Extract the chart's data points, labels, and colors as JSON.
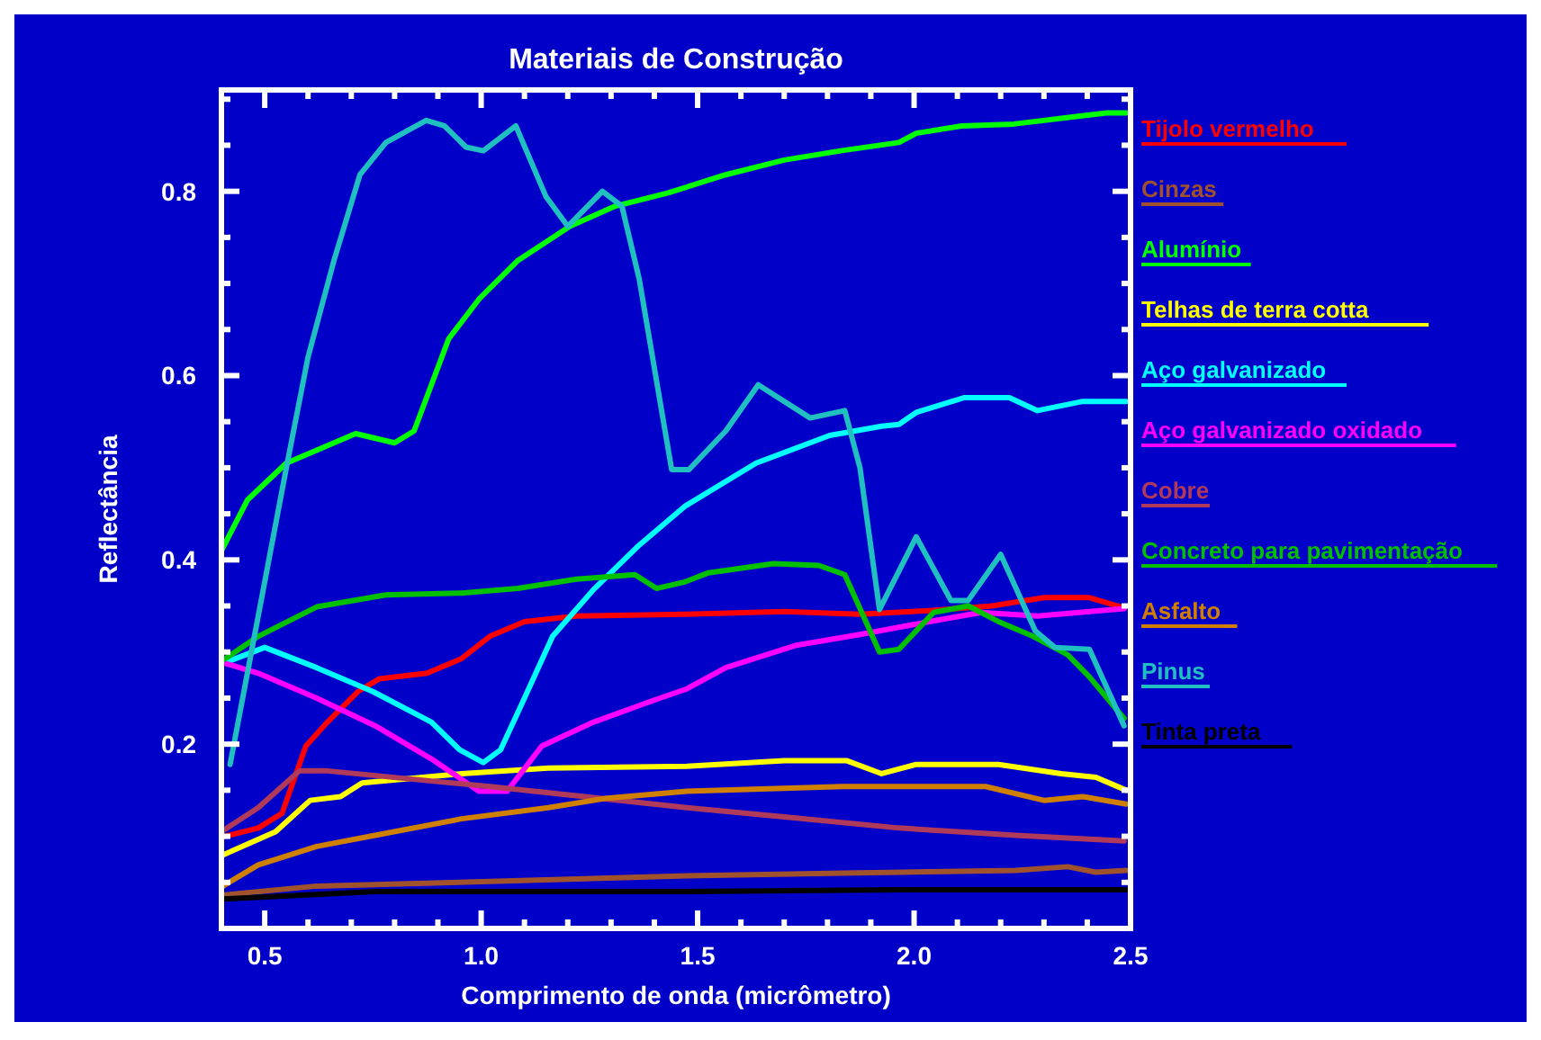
{
  "chart_data": {
    "type": "line",
    "title": "Materiais de Construção",
    "xlabel": "Comprimento de onda (micrômetro)",
    "ylabel": "Reflectância",
    "xlim": [
      0.4,
      2.5
    ],
    "ylim": [
      0,
      0.91
    ],
    "xticks": [
      {
        "value": 0.5,
        "label": "0.5"
      },
      {
        "value": 0.6,
        "label": null
      },
      {
        "value": 0.7,
        "label": null
      },
      {
        "value": 0.8,
        "label": null
      },
      {
        "value": 0.9,
        "label": null
      },
      {
        "value": 1,
        "label": "1.0"
      },
      {
        "value": 1.1,
        "label": null
      },
      {
        "value": 1.2,
        "label": null
      },
      {
        "value": 1.3,
        "label": null
      },
      {
        "value": 1.4,
        "label": null
      },
      {
        "value": 1.5,
        "label": "1.5"
      },
      {
        "value": 1.6,
        "label": null
      },
      {
        "value": 1.7,
        "label": null
      },
      {
        "value": 1.8,
        "label": null
      },
      {
        "value": 1.9,
        "label": null
      },
      {
        "value": 2,
        "label": "2.0"
      },
      {
        "value": 2.1,
        "label": null
      },
      {
        "value": 2.2,
        "label": null
      },
      {
        "value": 2.3,
        "label": null
      },
      {
        "value": 2.4,
        "label": null
      },
      {
        "value": 2.5,
        "label": "2.5"
      }
    ],
    "yticks": [
      {
        "value": 0.05,
        "label": null
      },
      {
        "value": 0.1,
        "label": null
      },
      {
        "value": 0.15,
        "label": null
      },
      {
        "value": 0.2,
        "label": "0.2"
      },
      {
        "value": 0.25,
        "label": null
      },
      {
        "value": 0.3,
        "label": null
      },
      {
        "value": 0.35,
        "label": null
      },
      {
        "value": 0.4,
        "label": "0.4"
      },
      {
        "value": 0.45,
        "label": null
      },
      {
        "value": 0.5,
        "label": null
      },
      {
        "value": 0.55,
        "label": null
      },
      {
        "value": 0.6,
        "label": "0.6"
      },
      {
        "value": 0.65,
        "label": null
      },
      {
        "value": 0.7,
        "label": null
      },
      {
        "value": 0.75,
        "label": null
      },
      {
        "value": 0.8,
        "label": "0.8"
      },
      {
        "value": 0.85,
        "label": null
      },
      {
        "value": 0.9,
        "label": null
      }
    ],
    "legend": "right",
    "series": [
      {
        "name": "Tijolo vermelho",
        "color": "#ff0000",
        "x": [
          0.4,
          0.485,
          0.54,
          0.595,
          0.645,
          0.715,
          0.765,
          0.875,
          0.955,
          1.02,
          1.1,
          1.22,
          1.47,
          1.7,
          1.875,
          2.035,
          2.18,
          2.3,
          2.405,
          2.485
        ],
        "values": [
          0.099,
          0.109,
          0.125,
          0.198,
          0.224,
          0.257,
          0.271,
          0.277,
          0.293,
          0.317,
          0.333,
          0.339,
          0.341,
          0.344,
          0.341,
          0.345,
          0.35,
          0.359,
          0.359,
          0.348
        ]
      },
      {
        "name": "Cinzas",
        "color": "#a0522d",
        "x": [
          0.4,
          0.62,
          1.02,
          1.475,
          1.835,
          2.235,
          2.355,
          2.42,
          2.49
        ],
        "values": [
          0.036,
          0.046,
          0.051,
          0.057,
          0.06,
          0.063,
          0.067,
          0.061,
          0.063
        ]
      },
      {
        "name": "Alumínio",
        "color": "#00ff00",
        "x": [
          0.4,
          0.46,
          0.55,
          0.71,
          0.8,
          0.845,
          0.925,
          0.995,
          1.085,
          1.205,
          1.31,
          1.43,
          1.565,
          1.7,
          1.83,
          1.965,
          2.005,
          2.11,
          2.23,
          2.37,
          2.445,
          2.49
        ],
        "values": [
          0.41,
          0.465,
          0.505,
          0.537,
          0.527,
          0.54,
          0.64,
          0.683,
          0.725,
          0.762,
          0.784,
          0.798,
          0.818,
          0.834,
          0.844,
          0.853,
          0.863,
          0.871,
          0.873,
          0.881,
          0.885,
          0.885
        ]
      },
      {
        "name": "Telhas de terra cotta",
        "color": "#ffff00",
        "x": [
          0.4,
          0.525,
          0.605,
          0.675,
          0.725,
          0.82,
          0.955,
          1.155,
          1.475,
          1.7,
          1.845,
          1.925,
          2.005,
          2.195,
          2.34,
          2.42,
          2.49
        ],
        "values": [
          0.079,
          0.105,
          0.139,
          0.143,
          0.158,
          0.162,
          0.168,
          0.174,
          0.176,
          0.182,
          0.182,
          0.168,
          0.178,
          0.178,
          0.168,
          0.164,
          0.15
        ]
      },
      {
        "name": "Aço galvanizado",
        "color": "#00ffff",
        "x": [
          0.4,
          0.5,
          0.62,
          0.75,
          0.885,
          0.95,
          1.005,
          1.045,
          1.1,
          1.165,
          1.26,
          1.365,
          1.47,
          1.635,
          1.805,
          1.925,
          1.965,
          2.005,
          2.115,
          2.22,
          2.285,
          2.39,
          2.49
        ],
        "values": [
          0.287,
          0.305,
          0.283,
          0.257,
          0.224,
          0.194,
          0.18,
          0.194,
          0.25,
          0.317,
          0.368,
          0.416,
          0.458,
          0.505,
          0.535,
          0.545,
          0.547,
          0.56,
          0.576,
          0.576,
          0.562,
          0.572,
          0.572
        ]
      },
      {
        "name": "Aço galvanizado oxidado",
        "color": "#ff00ff",
        "x": [
          0.4,
          0.485,
          0.62,
          0.755,
          0.885,
          0.995,
          1.06,
          1.14,
          1.26,
          1.395,
          1.475,
          1.565,
          1.725,
          1.875,
          2.035,
          2.155,
          2.285,
          2.485
        ],
        "values": [
          0.289,
          0.277,
          0.25,
          0.22,
          0.184,
          0.149,
          0.149,
          0.198,
          0.224,
          0.247,
          0.26,
          0.283,
          0.307,
          0.319,
          0.333,
          0.343,
          0.339,
          0.347
        ]
      },
      {
        "name": "Cobre",
        "color": "#b03a5a",
        "x": [
          0.4,
          0.485,
          0.58,
          0.645,
          0.885,
          1.02,
          1.22,
          1.475,
          1.7,
          1.965,
          2.235,
          2.485
        ],
        "values": [
          0.105,
          0.131,
          0.171,
          0.171,
          0.16,
          0.154,
          0.144,
          0.131,
          0.121,
          0.109,
          0.101,
          0.095
        ]
      },
      {
        "name": "Concreto para pavimentação",
        "color": "#00c000",
        "x": [
          0.4,
          0.485,
          0.62,
          0.78,
          0.955,
          1.085,
          1.22,
          1.355,
          1.405,
          1.47,
          1.525,
          1.675,
          1.78,
          1.84,
          1.92,
          1.965,
          2.045,
          2.125,
          2.195,
          2.275,
          2.355,
          2.405,
          2.485
        ],
        "values": [
          0.29,
          0.317,
          0.349,
          0.362,
          0.364,
          0.369,
          0.379,
          0.384,
          0.369,
          0.376,
          0.386,
          0.396,
          0.394,
          0.384,
          0.3,
          0.303,
          0.343,
          0.35,
          0.333,
          0.317,
          0.297,
          0.273,
          0.228
        ]
      },
      {
        "name": "Asfalto",
        "color": "#d08000",
        "x": [
          0.4,
          0.485,
          0.62,
          0.755,
          0.955,
          1.155,
          1.285,
          1.475,
          1.835,
          2.165,
          2.3,
          2.39,
          2.49
        ],
        "values": [
          0.045,
          0.069,
          0.089,
          0.101,
          0.119,
          0.131,
          0.141,
          0.149,
          0.154,
          0.154,
          0.139,
          0.143,
          0.135
        ]
      },
      {
        "name": "Pinus",
        "color": "#20c0c0",
        "x": [
          0.42,
          0.55,
          0.6,
          0.66,
          0.72,
          0.78,
          0.873,
          0.915,
          0.965,
          1.005,
          1.08,
          1.15,
          1.2,
          1.28,
          1.325,
          1.365,
          1.44,
          1.48,
          1.565,
          1.64,
          1.76,
          1.84,
          1.875,
          1.92,
          2.005,
          2.085,
          2.125,
          2.2,
          2.28,
          2.325,
          2.405,
          2.485
        ],
        "values": [
          0.178,
          0.5,
          0.62,
          0.725,
          0.818,
          0.853,
          0.877,
          0.871,
          0.848,
          0.844,
          0.871,
          0.794,
          0.762,
          0.8,
          0.784,
          0.705,
          0.498,
          0.498,
          0.54,
          0.59,
          0.554,
          0.562,
          0.5,
          0.346,
          0.425,
          0.356,
          0.356,
          0.406,
          0.323,
          0.305,
          0.303,
          0.22
        ]
      },
      {
        "name": "Tinta preta",
        "color": "#000000",
        "x": [
          0.405,
          0.755,
          1.47,
          1.965,
          2.49
        ],
        "values": [
          0.032,
          0.04,
          0.04,
          0.042,
          0.042
        ]
      }
    ]
  }
}
